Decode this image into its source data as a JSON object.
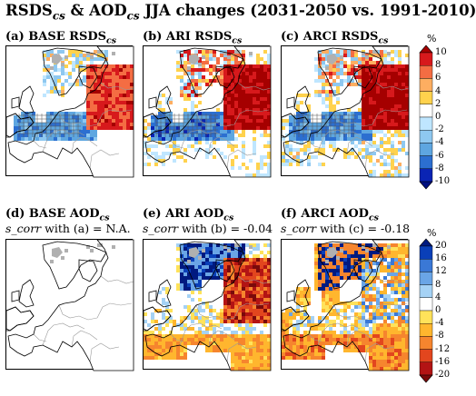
{
  "figure": {
    "title_main": "RSDS",
    "title_sub1": "cs",
    "title_mid": " & AOD",
    "title_sub2": "cs",
    "title_tail": " JJA changes (2031-2050 vs. 1991-2010)"
  },
  "panels": [
    {
      "label": "(a) BASE RSDS",
      "sub": "cs",
      "pattern": "a",
      "row": 0,
      "col": 0
    },
    {
      "label": "(b) ARI RSDS",
      "sub": "cs",
      "pattern": "b",
      "row": 0,
      "col": 1
    },
    {
      "label": "(c) ARCI RSDS",
      "sub": "cs",
      "pattern": "c",
      "row": 0,
      "col": 2
    },
    {
      "label": "(d) BASE AOD",
      "sub": "cs",
      "pattern": "d",
      "row": 1,
      "col": 0,
      "corr_it": "s_corr",
      "corr_text": " with (a) = N.A."
    },
    {
      "label": "(e) ARI AOD",
      "sub": "cs",
      "pattern": "e",
      "row": 1,
      "col": 1,
      "corr_it": "s_corr",
      "corr_text": " with (b) = -0.04"
    },
    {
      "label": "(f) ARCI AOD",
      "sub": "cs",
      "pattern": "f",
      "row": 1,
      "col": 2,
      "corr_it": "s_corr",
      "corr_text": " with (c) = -0.18"
    }
  ],
  "colorbars": [
    {
      "name": "rsds",
      "unit": "%",
      "ticks": [
        "10",
        "8",
        "6",
        "4",
        "2",
        "0",
        "-2",
        "-4",
        "-6",
        "-8",
        "-10"
      ],
      "colors": [
        "#a50000",
        "#d7191c",
        "#f46d43",
        "#fdae61",
        "#ffd24d",
        "#ffffff",
        "#bfe6ff",
        "#8ec8f0",
        "#5ea6e0",
        "#2c6fd0",
        "#0a24b4",
        "#001080"
      ]
    },
    {
      "name": "aod",
      "unit": "%",
      "ticks": [
        "20",
        "16",
        "12",
        "8",
        "4",
        "0",
        "-4",
        "-8",
        "-12",
        "-16",
        "-20"
      ],
      "colors": [
        "#001a80",
        "#0a3fb8",
        "#3a78d6",
        "#6aa5e6",
        "#a5d2f5",
        "#ffffff",
        "#ffe25a",
        "#ffb62e",
        "#f6852e",
        "#e2461e",
        "#b31414",
        "#7a0a0a"
      ]
    }
  ],
  "colors": {
    "land": "#ffffff",
    "masked": "#b0b0b0",
    "coast": "#000000",
    "border": "#999999"
  }
}
